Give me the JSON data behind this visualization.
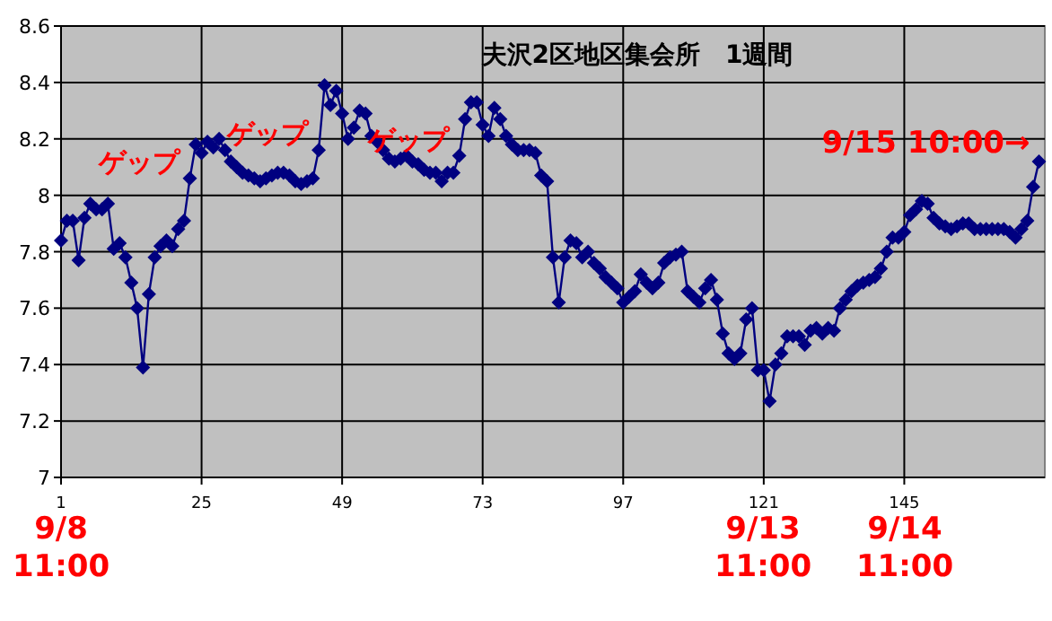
{
  "chart_data": {
    "type": "line",
    "title": "夫沢2区地区集会所　1週間",
    "x": [
      1,
      2,
      3,
      4,
      5,
      6,
      7,
      8,
      9,
      10,
      11,
      12,
      13,
      14,
      15,
      16,
      17,
      18,
      19,
      20,
      21,
      22,
      23,
      24,
      25,
      26,
      27,
      28,
      29,
      30,
      31,
      32,
      33,
      34,
      35,
      36,
      37,
      38,
      39,
      40,
      41,
      42,
      43,
      44,
      45,
      46,
      47,
      48,
      49,
      50,
      51,
      52,
      53,
      54,
      55,
      56,
      57,
      58,
      59,
      60,
      61,
      62,
      63,
      64,
      65,
      66,
      67,
      68,
      69,
      70,
      71,
      72,
      73,
      74,
      75,
      76,
      77,
      78,
      79,
      80,
      81,
      82,
      83,
      84,
      85,
      86,
      87,
      88,
      89,
      90,
      91,
      92,
      93,
      94,
      95,
      96,
      97,
      98,
      99,
      100,
      101,
      102,
      103,
      104,
      105,
      106,
      107,
      108,
      109,
      110,
      111,
      112,
      113,
      114,
      115,
      116,
      117,
      118,
      119,
      120,
      121,
      122,
      123,
      124,
      125,
      126,
      127,
      128,
      129,
      130,
      131,
      132,
      133,
      134,
      135,
      136,
      137,
      138,
      139,
      140,
      141,
      142,
      143,
      144,
      145,
      146,
      147,
      148,
      149,
      150,
      151,
      152,
      153,
      154,
      155,
      156,
      157,
      158,
      159,
      160,
      161,
      162,
      163,
      164,
      165,
      166,
      167,
      168
    ],
    "series": [
      {
        "color": "#000080",
        "values": [
          7.84,
          7.91,
          7.91,
          7.77,
          7.92,
          7.97,
          7.95,
          7.95,
          7.97,
          7.81,
          7.83,
          7.78,
          7.69,
          7.6,
          7.39,
          7.65,
          7.78,
          7.82,
          7.84,
          7.82,
          7.88,
          7.91,
          8.06,
          8.18,
          8.15,
          8.19,
          8.17,
          8.2,
          8.16,
          8.12,
          8.1,
          8.08,
          8.07,
          8.06,
          8.05,
          8.06,
          8.07,
          8.08,
          8.08,
          8.07,
          8.05,
          8.04,
          8.05,
          8.06,
          8.16,
          8.39,
          8.32,
          8.37,
          8.29,
          8.2,
          8.24,
          8.3,
          8.29,
          8.21,
          8.19,
          8.16,
          8.13,
          8.12,
          8.13,
          8.14,
          8.12,
          8.11,
          8.09,
          8.08,
          8.08,
          8.05,
          8.08,
          8.08,
          8.14,
          8.27,
          8.33,
          8.33,
          8.25,
          8.21,
          8.31,
          8.27,
          8.21,
          8.18,
          8.16,
          8.16,
          8.16,
          8.15,
          8.07,
          8.05,
          7.78,
          7.62,
          7.78,
          7.84,
          7.83,
          7.78,
          7.8,
          7.76,
          7.74,
          7.71,
          7.69,
          7.67,
          7.62,
          7.64,
          7.66,
          7.72,
          7.69,
          7.67,
          7.69,
          7.76,
          7.78,
          7.79,
          7.8,
          7.66,
          7.64,
          7.62,
          7.67,
          7.7,
          7.63,
          7.51,
          7.44,
          7.42,
          7.44,
          7.56,
          7.6,
          7.38,
          7.38,
          7.27,
          7.4,
          7.44,
          7.5,
          7.5,
          7.5,
          7.47,
          7.52,
          7.53,
          7.51,
          7.53,
          7.52,
          7.6,
          7.63,
          7.66,
          7.68,
          7.69,
          7.7,
          7.71,
          7.74,
          7.8,
          7.85,
          7.85,
          7.87,
          7.93,
          7.95,
          7.98,
          7.97,
          7.92,
          7.9,
          7.89,
          7.88,
          7.89,
          7.9,
          7.9,
          7.88,
          7.88,
          7.88,
          7.88,
          7.88,
          7.88,
          7.87,
          7.85,
          7.88,
          7.91,
          8.03,
          8.12
        ]
      }
    ],
    "xlim": [
      1,
      169
    ],
    "xticks": [
      1,
      25,
      49,
      73,
      97,
      121,
      145
    ],
    "ylim": [
      7,
      8.6
    ],
    "yticks": [
      7,
      7.2,
      7.4,
      7.6,
      7.8,
      8,
      8.2,
      8.4,
      8.6
    ],
    "grid": true,
    "marker": "diamond",
    "line_style": "solid",
    "annotations": [
      {
        "text": "ゲップ",
        "x": 23,
        "y": 8.06
      },
      {
        "text": "ゲップ",
        "x": 45,
        "y": 8.16
      },
      {
        "text": "ゲップ",
        "x": 69,
        "y": 8.14
      },
      "9/8\n11:00",
      "9/13\n11:00",
      "9/14\n11:00",
      {
        "text": "9/15 10:00→",
        "x": 168,
        "y": 8.12
      }
    ]
  }
}
